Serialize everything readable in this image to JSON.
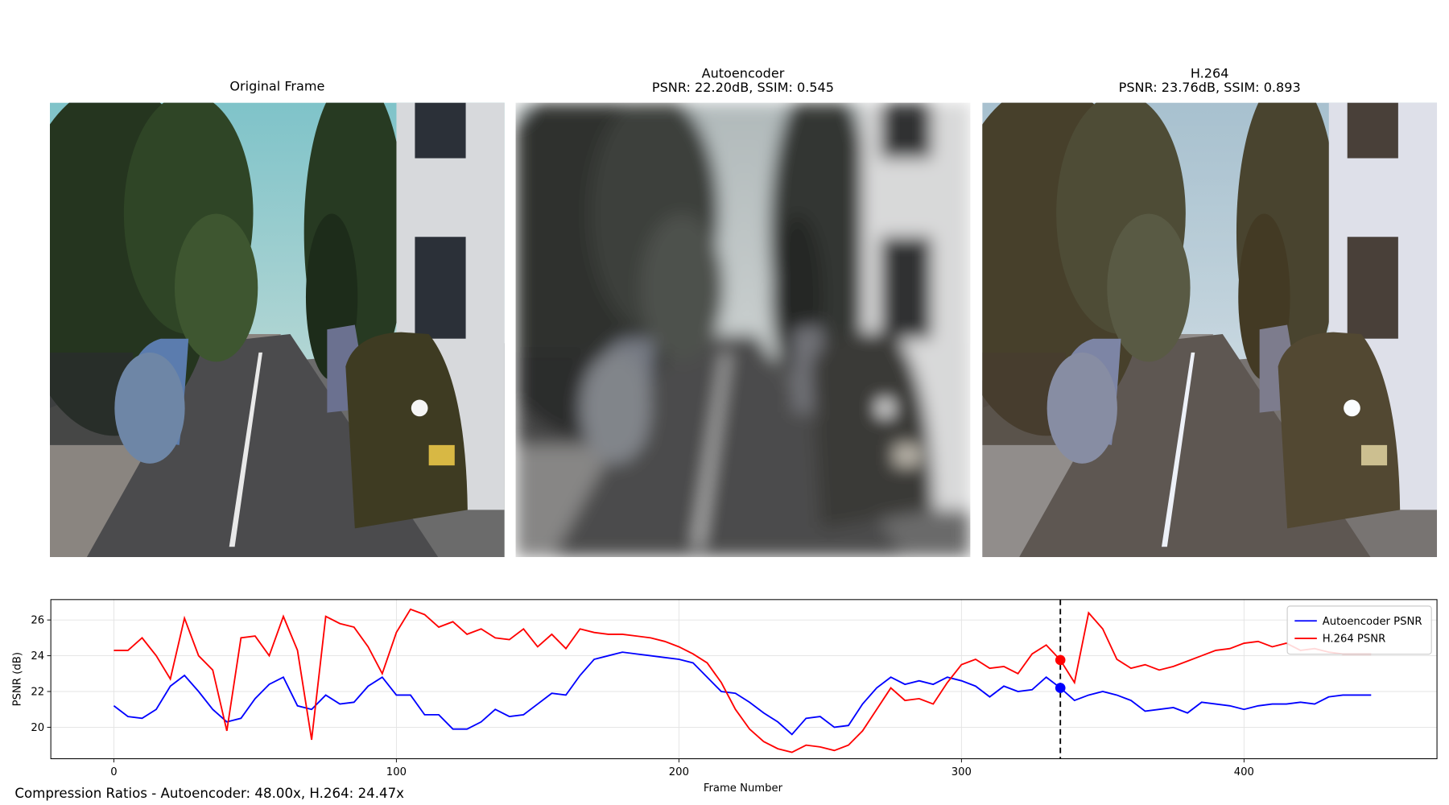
{
  "panels": [
    {
      "title": "Original Frame"
    },
    {
      "title": "Autoencoder",
      "subtitle": "PSNR: 22.20dB, SSIM: 0.545"
    },
    {
      "title": "H.264",
      "subtitle": "PSNR: 23.76dB, SSIM: 0.893"
    }
  ],
  "chart_data": {
    "type": "line",
    "xlabel": "Frame Number",
    "ylabel": "PSNR (dB)",
    "x": [
      0,
      5,
      10,
      15,
      20,
      25,
      30,
      35,
      40,
      45,
      50,
      55,
      60,
      65,
      70,
      75,
      80,
      85,
      90,
      95,
      100,
      105,
      110,
      115,
      120,
      125,
      130,
      135,
      140,
      145,
      150,
      155,
      160,
      165,
      170,
      175,
      180,
      185,
      190,
      195,
      200,
      205,
      210,
      215,
      220,
      225,
      230,
      235,
      240,
      245,
      250,
      255,
      260,
      265,
      270,
      275,
      280,
      285,
      290,
      295,
      300,
      305,
      310,
      315,
      320,
      325,
      330,
      335,
      340,
      345,
      350,
      355,
      360,
      365,
      370,
      375,
      380,
      385,
      390,
      395,
      400,
      405,
      410,
      415,
      420,
      425,
      430,
      435,
      440,
      445
    ],
    "series": [
      {
        "name": "Autoencoder PSNR",
        "color": "#0000ff",
        "values": [
          21.2,
          20.6,
          20.5,
          21.0,
          22.3,
          22.9,
          22.0,
          21.0,
          20.3,
          20.5,
          21.6,
          22.4,
          22.8,
          21.2,
          21.0,
          21.8,
          21.3,
          21.4,
          22.3,
          22.8,
          21.8,
          21.8,
          20.7,
          20.7,
          19.9,
          19.9,
          20.3,
          21.0,
          20.6,
          20.7,
          21.3,
          21.9,
          21.8,
          22.9,
          23.8,
          24.0,
          24.2,
          24.1,
          24.0,
          23.9,
          23.8,
          23.6,
          22.8,
          22.0,
          21.9,
          21.4,
          20.8,
          20.3,
          19.6,
          20.5,
          20.6,
          20.0,
          20.1,
          21.3,
          22.2,
          22.8,
          22.4,
          22.6,
          22.4,
          22.8,
          22.6,
          22.3,
          21.7,
          22.3,
          22.0,
          22.1,
          22.8,
          22.2,
          21.5,
          21.8,
          22.0,
          21.8,
          21.5,
          20.9,
          21.0,
          21.1,
          20.8,
          21.4,
          21.3,
          21.2,
          21.0,
          21.2,
          21.3,
          21.3,
          21.4,
          21.3,
          21.7,
          21.8,
          21.8,
          21.8
        ]
      },
      {
        "name": "H.264 PSNR",
        "color": "#ff0000",
        "values": [
          24.3,
          24.3,
          25.0,
          24.0,
          22.7,
          26.1,
          24.0,
          23.2,
          19.8,
          25.0,
          25.1,
          24.0,
          26.2,
          24.3,
          19.3,
          26.2,
          25.8,
          25.6,
          24.5,
          23.0,
          25.3,
          26.6,
          26.3,
          25.6,
          25.9,
          25.2,
          25.5,
          25.0,
          24.9,
          25.5,
          24.5,
          25.2,
          24.4,
          25.5,
          25.3,
          25.2,
          25.2,
          25.1,
          25.0,
          24.8,
          24.5,
          24.1,
          23.6,
          22.5,
          21.0,
          19.9,
          19.2,
          18.8,
          18.6,
          19.0,
          18.9,
          18.7,
          19.0,
          19.8,
          21.0,
          22.2,
          21.5,
          21.6,
          21.3,
          22.5,
          23.5,
          23.8,
          23.3,
          23.4,
          23.0,
          24.1,
          24.6,
          23.76,
          22.5,
          26.4,
          25.5,
          23.8,
          23.3,
          23.5,
          23.2,
          23.4,
          23.7,
          24.0,
          24.3,
          24.4,
          24.7,
          24.8,
          24.5,
          24.7,
          24.3,
          24.4,
          24.2,
          24.1,
          24.1,
          24.1
        ]
      }
    ],
    "current_frame": 335,
    "xlim": [
      -22.3,
      468.3
    ],
    "xticks": [
      0,
      100,
      200,
      300,
      400
    ],
    "ylim": [
      18.24,
      27.14
    ],
    "yticks": [
      20,
      22,
      24,
      26
    ],
    "grid": true,
    "legend": "upper right"
  },
  "footer": "Compression Ratios - Autoencoder: 48.00x, H.264: 24.47x"
}
